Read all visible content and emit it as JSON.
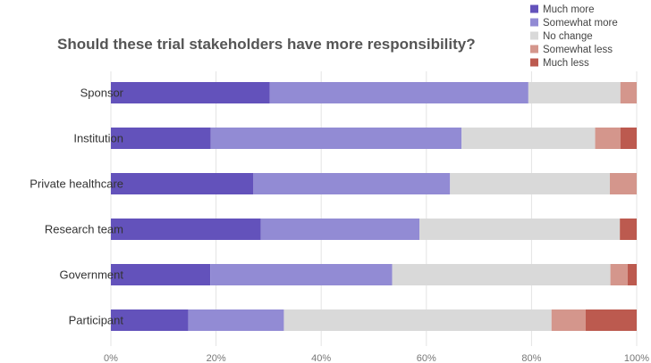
{
  "chart_data": {
    "type": "bar",
    "orientation": "horizontal",
    "stacked": true,
    "title": "Should these trial stakeholders have more responsibility?",
    "categories": [
      "Sponsor",
      "Institution",
      "Private healthcare",
      "Research team",
      "Government",
      "Participant"
    ],
    "series": [
      {
        "name": "Much more",
        "color": "#6352bb",
        "values": [
          30.2,
          19.0,
          27.1,
          28.5,
          18.9,
          14.7
        ]
      },
      {
        "name": "Somewhat more",
        "color": "#928bd4",
        "values": [
          49.2,
          47.7,
          37.4,
          30.2,
          34.6,
          18.2
        ]
      },
      {
        "name": "No change",
        "color": "#d9d9d9",
        "values": [
          17.5,
          25.4,
          30.4,
          38.1,
          41.5,
          50.9
        ]
      },
      {
        "name": "Somewhat less",
        "color": "#d4968c",
        "values": [
          3.1,
          4.8,
          5.1,
          0.0,
          3.3,
          6.5
        ]
      },
      {
        "name": "Much less",
        "color": "#bc5a4f",
        "values": [
          0.0,
          3.1,
          0.0,
          3.2,
          1.7,
          9.7
        ]
      }
    ],
    "x_ticks": [
      "0%",
      "20%",
      "40%",
      "60%",
      "80%",
      "100%"
    ],
    "xlim": [
      0,
      100
    ],
    "legend_position": "top-right",
    "grid": true
  }
}
